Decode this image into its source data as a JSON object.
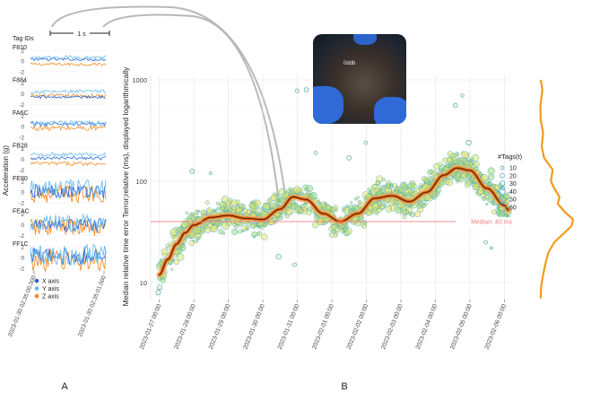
{
  "panel_labels": {
    "a": "A",
    "b": "B"
  },
  "scale_bar_label": "1 s",
  "photo": {
    "tag_text": "0ddb"
  },
  "chart_data": [
    {
      "type": "line",
      "title": "",
      "header": "Tag IDs",
      "ylabel": "Acceleration (g)",
      "yticks": [
        -2,
        0,
        2
      ],
      "xtick_labels": [
        "2023-01-30 02:35:00.000",
        "2023-01-30 02:35:01.000"
      ],
      "tags": [
        "F810",
        "F884",
        "FA6C",
        "FB28",
        "FE80",
        "FEAC",
        "FF1C"
      ],
      "legend": [
        "X axis",
        "Y axis",
        "Z axis"
      ],
      "legend_placement": "bottom-left",
      "colors": {
        "x": "#2563d6",
        "y": "#62b9ee",
        "z": "#f28a1e"
      },
      "series_offsets_g": {
        "F810": {
          "x": 0.3,
          "y": 0.7,
          "z": -0.6
        },
        "F884": {
          "x": -0.6,
          "y": 0.4,
          "z": -0.4
        },
        "FA6C": {
          "x": 0.5,
          "y": 0.6,
          "z": -0.3
        },
        "FB28": {
          "x": 0.2,
          "y": 0.9,
          "z": -0.8
        },
        "FE80": {
          "x": 0.2,
          "y": 0.8,
          "z": -0.4
        },
        "FEAC": {
          "x": 0.0,
          "y": 0.3,
          "z": -0.5
        },
        "FF1C": {
          "x": 0.2,
          "y": 0.5,
          "z": -0.6
        }
      },
      "noise_amplitude_g": {
        "F810": 0.3,
        "F884": 0.35,
        "FA6C": 0.5,
        "FB28": 0.35,
        "FE80": 1.6,
        "FEAC": 1.6,
        "FF1C": 2.0
      }
    },
    {
      "type": "scatter",
      "title": "",
      "xlabel": "",
      "ylabel": "Median relative time error Terror;relative (ms), displayed logarithmically",
      "y_scale": "log",
      "ylim": [
        7,
        1100
      ],
      "yticks": [
        10,
        100,
        1000
      ],
      "xlim": [
        "2023-01-26 18:00",
        "2023-02-06 06:00"
      ],
      "xticks": [
        "2023-01-27 00:00",
        "2023-01-28 00:00",
        "2023-01-29 00:00",
        "2023-01-30 00:00",
        "2023-01-31 00:00",
        "2023-02-01 00:00",
        "2023-02-02 00:00",
        "2023-02-03 00:00",
        "2023-02-04 00:00",
        "2023-02-05 00:00",
        "2023-02-06 00:00"
      ],
      "grid": true,
      "median_line": {
        "value": 40,
        "label": "Median: 40 ms",
        "color": "#f07f7f"
      },
      "size_legend": {
        "title": "#Tags(t)",
        "values": [
          10,
          20,
          30,
          40,
          50,
          60
        ],
        "placement": "right"
      },
      "trend_color": "#e85d04",
      "trend": [
        {
          "x": "2023-01-27 00:00",
          "y": 12
        },
        {
          "x": "2023-01-27 06:00",
          "y": 17
        },
        {
          "x": "2023-01-27 12:00",
          "y": 24
        },
        {
          "x": "2023-01-27 18:00",
          "y": 31
        },
        {
          "x": "2023-01-28 00:00",
          "y": 37
        },
        {
          "x": "2023-01-28 12:00",
          "y": 44
        },
        {
          "x": "2023-01-29 00:00",
          "y": 46
        },
        {
          "x": "2023-01-29 12:00",
          "y": 43
        },
        {
          "x": "2023-01-30 00:00",
          "y": 42
        },
        {
          "x": "2023-01-30 12:00",
          "y": 53
        },
        {
          "x": "2023-01-30 21:00",
          "y": 70
        },
        {
          "x": "2023-01-31 06:00",
          "y": 66
        },
        {
          "x": "2023-01-31 18:00",
          "y": 48
        },
        {
          "x": "2023-02-01 06:00",
          "y": 40
        },
        {
          "x": "2023-02-01 18:00",
          "y": 48
        },
        {
          "x": "2023-02-02 06:00",
          "y": 68
        },
        {
          "x": "2023-02-02 18:00",
          "y": 72
        },
        {
          "x": "2023-02-03 06:00",
          "y": 63
        },
        {
          "x": "2023-02-03 18:00",
          "y": 78
        },
        {
          "x": "2023-02-04 06:00",
          "y": 115
        },
        {
          "x": "2023-02-04 15:00",
          "y": 135
        },
        {
          "x": "2023-02-05 00:00",
          "y": 128
        },
        {
          "x": "2023-02-05 12:00",
          "y": 85
        },
        {
          "x": "2023-02-06 00:00",
          "y": 58
        },
        {
          "x": "2023-02-06 03:00",
          "y": 52
        }
      ],
      "outliers": [
        {
          "x": "2023-01-27 00:00",
          "y": 8
        },
        {
          "x": "2023-01-27 00:00",
          "y": 9
        },
        {
          "x": "2023-01-28 00:00",
          "y": 125
        },
        {
          "x": "2023-01-28 12:00",
          "y": 120
        },
        {
          "x": "2023-01-30 12:00",
          "y": 18
        },
        {
          "x": "2023-01-30 21:00",
          "y": 15
        },
        {
          "x": "2023-01-31 00:00",
          "y": 780
        },
        {
          "x": "2023-01-31 06:00",
          "y": 800
        },
        {
          "x": "2023-01-31 12:00",
          "y": 190
        },
        {
          "x": "2023-02-01 12:00",
          "y": 170
        },
        {
          "x": "2023-02-02 00:00",
          "y": 240
        },
        {
          "x": "2023-02-04 15:00",
          "y": 560
        },
        {
          "x": "2023-02-04 18:00",
          "y": 700
        },
        {
          "x": "2023-02-05 00:00",
          "y": 240
        },
        {
          "x": "2023-02-05 12:00",
          "y": 25
        },
        {
          "x": "2023-02-05 15:00",
          "y": 22
        },
        {
          "x": "2023-02-06 00:00",
          "y": 85
        }
      ]
    },
    {
      "type": "area",
      "title": "",
      "description_of_axis": "",
      "y_scale": "log",
      "color": "#f39a1c",
      "density": [
        {
          "y": 7,
          "d": 0.05
        },
        {
          "y": 9,
          "d": 0.06
        },
        {
          "y": 12,
          "d": 0.12
        },
        {
          "y": 16,
          "d": 0.2
        },
        {
          "y": 20,
          "d": 0.28
        },
        {
          "y": 25,
          "d": 0.45
        },
        {
          "y": 30,
          "d": 0.7
        },
        {
          "y": 36,
          "d": 0.95
        },
        {
          "y": 42,
          "d": 1.0
        },
        {
          "y": 50,
          "d": 0.75
        },
        {
          "y": 60,
          "d": 0.55
        },
        {
          "y": 70,
          "d": 0.6
        },
        {
          "y": 85,
          "d": 0.45
        },
        {
          "y": 100,
          "d": 0.35
        },
        {
          "y": 130,
          "d": 0.4
        },
        {
          "y": 170,
          "d": 0.15
        },
        {
          "y": 220,
          "d": 0.08
        },
        {
          "y": 300,
          "d": 0.12
        },
        {
          "y": 400,
          "d": 0.05
        },
        {
          "y": 550,
          "d": 0.04
        },
        {
          "y": 800,
          "d": 0.1
        },
        {
          "y": 1000,
          "d": 0.05
        }
      ]
    }
  ]
}
